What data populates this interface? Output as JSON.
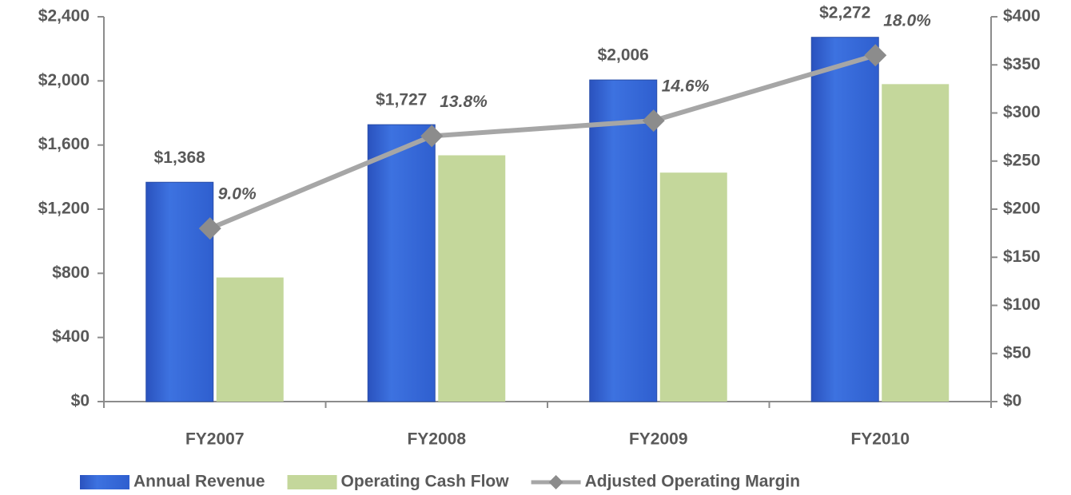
{
  "chart_data": {
    "type": "bar-line",
    "categories": [
      "FY2007",
      "FY2008",
      "FY2009",
      "FY2010"
    ],
    "series": [
      {
        "name": "Annual Revenue",
        "type": "bar",
        "color": "#3366d6",
        "values": [
          1368,
          1727,
          2006,
          2272
        ],
        "value_labels": [
          "$1,368",
          "$1,727",
          "$2,006",
          "$2,272"
        ]
      },
      {
        "name": "Operating Cash Flow",
        "type": "bar",
        "color": "#c4d79b",
        "axis": "y2",
        "values": [
          129,
          256,
          238,
          330
        ]
      },
      {
        "name": "Adjusted Operating Margin",
        "type": "line",
        "color": "#a6a6a6",
        "axis": "y3",
        "values": [
          9.0,
          13.8,
          14.6,
          18.0
        ],
        "value_labels": [
          "9.0%",
          "13.8%",
          "14.6%",
          "18.0%"
        ]
      }
    ],
    "ylim": [
      0,
      2400
    ],
    "yticks": [
      {
        "value": 0,
        "label": "$0"
      },
      {
        "value": 400,
        "label": "$400"
      },
      {
        "value": 800,
        "label": "$800"
      },
      {
        "value": 1200,
        "label": "$1,200"
      },
      {
        "value": 1600,
        "label": "$1,600"
      },
      {
        "value": 2000,
        "label": "$2,000"
      },
      {
        "value": 2400,
        "label": "$2,400"
      }
    ],
    "y2lim": [
      0,
      400
    ],
    "y2ticks": [
      {
        "value": 0,
        "label": "$0"
      },
      {
        "value": 50,
        "label": "$50"
      },
      {
        "value": 100,
        "label": "$100"
      },
      {
        "value": 150,
        "label": "$150"
      },
      {
        "value": 200,
        "label": "$200"
      },
      {
        "value": 250,
        "label": "$250"
      },
      {
        "value": 300,
        "label": "$300"
      },
      {
        "value": 350,
        "label": "$350"
      },
      {
        "value": 400,
        "label": "$400"
      }
    ],
    "y3lim": [
      0,
      20
    ],
    "legend": "bottom"
  }
}
